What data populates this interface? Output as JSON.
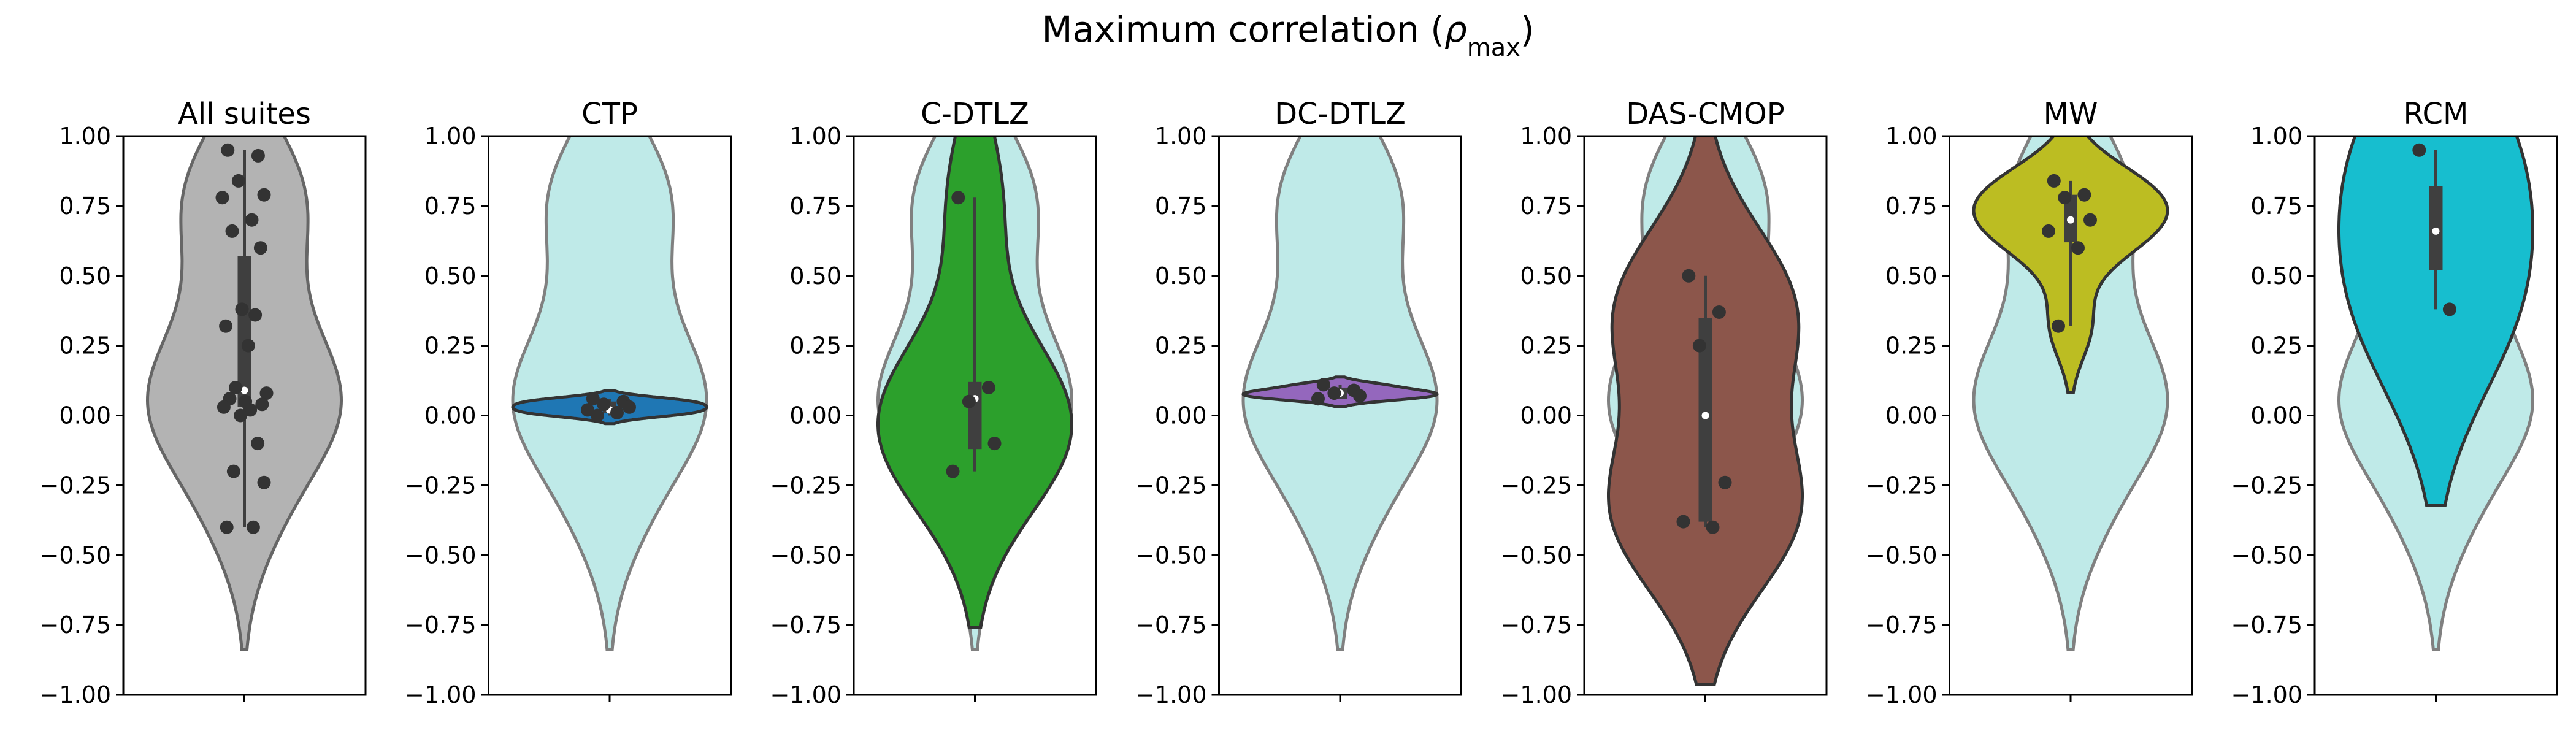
{
  "chart_data": {
    "type": "violin",
    "title": "Maximum correlation (",
    "title_symbol": "ρ",
    "title_subscript": "max",
    "title_close": ")",
    "ylim": [
      -1.0,
      1.0
    ],
    "yticks": [
      "1.00",
      "0.75",
      "0.50",
      "0.25",
      "0.00",
      "−0.25",
      "−0.50",
      "−0.75",
      "−1.00"
    ],
    "ytick_values": [
      1.0,
      0.75,
      0.5,
      0.25,
      0.0,
      -0.25,
      -0.5,
      -0.75,
      -1.0
    ],
    "grid": false,
    "background_violin_color": "#bfeae8",
    "background_points": [
      0.95,
      0.93,
      0.84,
      0.79,
      0.78,
      0.7,
      0.66,
      0.6,
      0.38,
      0.36,
      0.32,
      0.25,
      0.1,
      0.08,
      0.06,
      0.05,
      0.04,
      0.03,
      0.02,
      0.0,
      -0.1,
      -0.2,
      -0.24,
      -0.4,
      -0.4
    ],
    "panels": [
      {
        "title": "All suites",
        "color": "#b3b3b3",
        "edge_color": "#666666",
        "show_background": false,
        "points": [
          0.95,
          0.93,
          0.84,
          0.79,
          0.78,
          0.7,
          0.66,
          0.6,
          0.38,
          0.36,
          0.32,
          0.25,
          0.1,
          0.08,
          0.06,
          0.05,
          0.04,
          0.03,
          0.02,
          0.0,
          -0.1,
          -0.2,
          -0.24,
          -0.4,
          -0.4
        ],
        "quartiles": [
          0.03,
          0.57
        ],
        "median": 0.09
      },
      {
        "title": "CTP",
        "color": "#1f77b4",
        "edge_color": "#333333",
        "show_background": true,
        "points": [
          0.06,
          0.05,
          0.04,
          0.03,
          0.02,
          0.01,
          0.0
        ],
        "quartiles": [
          0.01,
          0.05
        ],
        "median": 0.02
      },
      {
        "title": "C-DTLZ",
        "color": "#2ca02c",
        "edge_color": "#333333",
        "show_background": true,
        "points": [
          0.78,
          0.1,
          0.05,
          -0.1,
          -0.2
        ],
        "quartiles": [
          -0.12,
          0.12
        ],
        "median": 0.06
      },
      {
        "title": "DC-DTLZ",
        "color": "#9467bd",
        "edge_color": "#333333",
        "show_background": true,
        "points": [
          0.11,
          0.09,
          0.08,
          0.07,
          0.06
        ],
        "quartiles": [
          0.06,
          0.1
        ],
        "median": 0.08
      },
      {
        "title": "DAS-CMOP",
        "color": "#8c564b",
        "edge_color": "#333333",
        "show_background": true,
        "points": [
          0.5,
          0.37,
          0.25,
          -0.24,
          -0.38,
          -0.4
        ],
        "quartiles": [
          -0.38,
          0.35
        ],
        "median": 0.0
      },
      {
        "title": "MW",
        "color": "#bcbd22",
        "edge_color": "#333333",
        "show_background": true,
        "points": [
          0.84,
          0.79,
          0.78,
          0.7,
          0.66,
          0.6,
          0.32
        ],
        "quartiles": [
          0.62,
          0.79
        ],
        "median": 0.7
      },
      {
        "title": "RCM",
        "color": "#17becf",
        "edge_color": "#333333",
        "show_background": true,
        "points": [
          0.95,
          0.38
        ],
        "quartiles": [
          0.52,
          0.82
        ],
        "median": 0.66
      }
    ]
  }
}
